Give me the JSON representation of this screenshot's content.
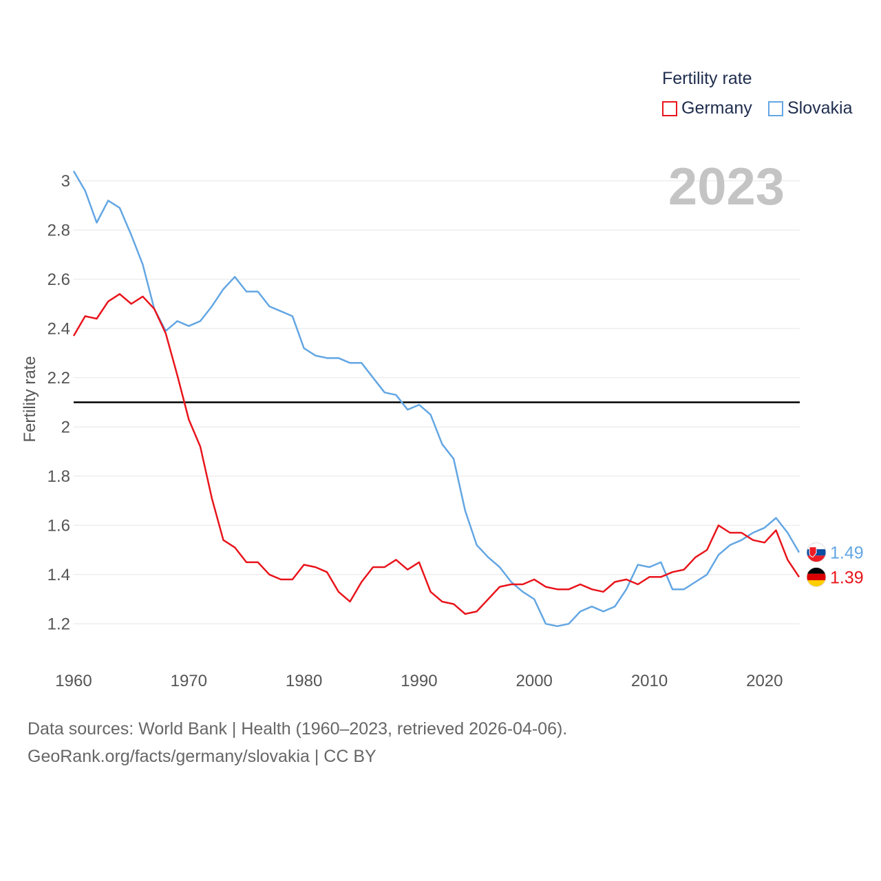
{
  "legend": {
    "title": "Fertility rate",
    "items": [
      {
        "name": "Germany",
        "color": "#e8141b"
      },
      {
        "name": "Slovakia",
        "color": "#63a6e3"
      }
    ]
  },
  "current_year": "2023",
  "source": {
    "line1": "Data sources: World Bank | Health (1960–2023, retrieved 2026-04-06).",
    "line2": "GeoRank.org/facts/germany/slovakia | CC BY"
  },
  "chart_data": {
    "type": "line",
    "ylabel": "Fertility rate",
    "xlabel": "",
    "xlim": [
      1960,
      2023
    ],
    "ylim": [
      1.1,
      3.1
    ],
    "x_ticks": [
      1960,
      1970,
      1980,
      1990,
      2000,
      2010,
      2020
    ],
    "y_ticks": [
      1.2,
      1.4,
      1.6,
      1.8,
      2,
      2.2,
      2.4,
      2.6,
      2.8,
      3
    ],
    "y_tick_labels": [
      "1.2",
      "1.4",
      "1.6",
      "1.8",
      "2",
      "2.2",
      "2.4",
      "2.6",
      "2.8",
      "3"
    ],
    "reference_line": 2.1,
    "x": [
      1960,
      1961,
      1962,
      1963,
      1964,
      1965,
      1966,
      1967,
      1968,
      1969,
      1970,
      1971,
      1972,
      1973,
      1974,
      1975,
      1976,
      1977,
      1978,
      1979,
      1980,
      1981,
      1982,
      1983,
      1984,
      1985,
      1986,
      1987,
      1988,
      1989,
      1990,
      1991,
      1992,
      1993,
      1994,
      1995,
      1996,
      1997,
      1998,
      1999,
      2000,
      2001,
      2002,
      2003,
      2004,
      2005,
      2006,
      2007,
      2008,
      2009,
      2010,
      2011,
      2012,
      2013,
      2014,
      2015,
      2016,
      2017,
      2018,
      2019,
      2020,
      2021,
      2022,
      2023
    ],
    "series": [
      {
        "name": "Germany",
        "color": "#e8141b",
        "end_label": "1.39",
        "values": [
          2.37,
          2.45,
          2.44,
          2.51,
          2.54,
          2.5,
          2.53,
          2.48,
          2.38,
          2.21,
          2.03,
          1.92,
          1.71,
          1.54,
          1.51,
          1.45,
          1.45,
          1.4,
          1.38,
          1.38,
          1.44,
          1.43,
          1.41,
          1.33,
          1.29,
          1.37,
          1.43,
          1.43,
          1.46,
          1.42,
          1.45,
          1.33,
          1.29,
          1.28,
          1.24,
          1.25,
          1.3,
          1.35,
          1.36,
          1.36,
          1.38,
          1.35,
          1.34,
          1.34,
          1.36,
          1.34,
          1.33,
          1.37,
          1.38,
          1.36,
          1.39,
          1.39,
          1.41,
          1.42,
          1.47,
          1.5,
          1.6,
          1.57,
          1.57,
          1.54,
          1.53,
          1.58,
          1.46,
          1.39
        ]
      },
      {
        "name": "Slovakia",
        "color": "#63a6e3",
        "end_label": "1.49",
        "values": [
          3.04,
          2.96,
          2.83,
          2.92,
          2.89,
          2.78,
          2.66,
          2.48,
          2.39,
          2.43,
          2.41,
          2.43,
          2.49,
          2.56,
          2.61,
          2.55,
          2.55,
          2.49,
          2.47,
          2.45,
          2.32,
          2.29,
          2.28,
          2.28,
          2.26,
          2.26,
          2.2,
          2.14,
          2.13,
          2.07,
          2.09,
          2.05,
          1.93,
          1.87,
          1.66,
          1.52,
          1.47,
          1.43,
          1.37,
          1.33,
          1.3,
          1.2,
          1.19,
          1.2,
          1.25,
          1.27,
          1.25,
          1.27,
          1.34,
          1.44,
          1.43,
          1.45,
          1.34,
          1.34,
          1.37,
          1.4,
          1.48,
          1.52,
          1.54,
          1.57,
          1.59,
          1.63,
          1.57,
          1.49
        ]
      }
    ]
  }
}
